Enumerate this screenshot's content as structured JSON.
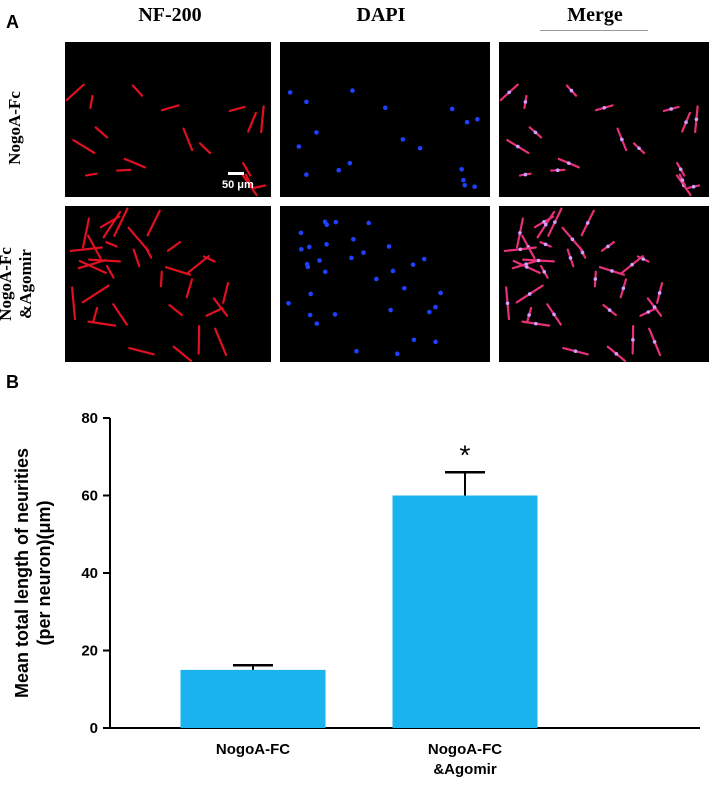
{
  "panel_a": {
    "letter": "A",
    "columns": [
      "NF-200",
      "DAPI",
      "Merge"
    ],
    "rows": [
      {
        "label_lines": [
          "NogoA-Fc"
        ]
      },
      {
        "label_lines": [
          "NogoA-Fc",
          "&Agomir"
        ]
      }
    ],
    "scale_bar": "50 μm",
    "colors": {
      "nf200": "#e01020",
      "dapi": "#2040ff",
      "merge": "#e8307a",
      "background": "#000000"
    }
  },
  "panel_b": {
    "letter": "B"
  },
  "chart_data": {
    "type": "bar",
    "categories": [
      [
        "NogoA-FC"
      ],
      [
        "NogoA-FC",
        "&Agomir"
      ]
    ],
    "values": [
      15,
      60
    ],
    "errors": [
      1.2,
      6
    ],
    "significance": [
      "",
      "*"
    ],
    "ylabel_lines": [
      "Mean total length of neurities",
      "(per neuron)(μm)"
    ],
    "ylim": [
      0,
      80
    ],
    "yticks": [
      0,
      20,
      40,
      60,
      80
    ],
    "bar_color": "#1ab2ef",
    "grid": false
  }
}
